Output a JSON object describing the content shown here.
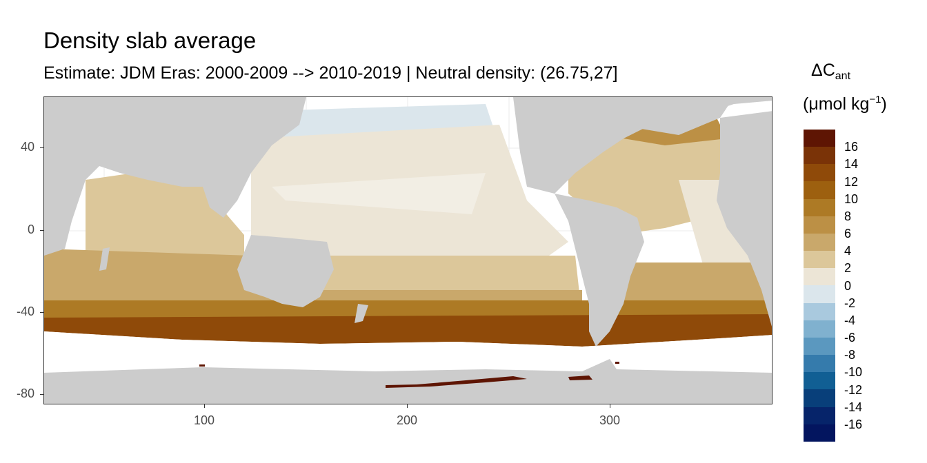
{
  "title": "Density slab average",
  "subtitle": "Estimate: JDM Eras: 2000-2009 --> 2010-2019 | Neutral density: (26.75,27]",
  "map": {
    "y_ticks": [
      "40",
      "0",
      "-40",
      "-80"
    ],
    "x_ticks": [
      "100",
      "200",
      "300"
    ],
    "land_color": "#cccccc",
    "no_data_color": "#ffffff"
  },
  "legend": {
    "title_main": "ΔC",
    "title_sub": "ant",
    "unit_main": "(μmol kg",
    "unit_sup": "−1",
    "unit_end": ")",
    "labels": [
      "16",
      "14",
      "12",
      "10",
      "8",
      "6",
      "4",
      "2",
      "0",
      "-2",
      "-4",
      "-6",
      "-8",
      "-10",
      "-12",
      "-14",
      "-16"
    ],
    "colors": [
      "#5e1503",
      "#7a3307",
      "#8f4a09",
      "#9d600f",
      "#ad7a25",
      "#bc9045",
      "#c9a86b",
      "#dcc79a",
      "#ece5d6",
      "#dbe6ec",
      "#a9c9de",
      "#80b1cf",
      "#5b98bf",
      "#357bac",
      "#115f94",
      "#083f7a",
      "#06246a",
      "#03155f"
    ]
  }
}
